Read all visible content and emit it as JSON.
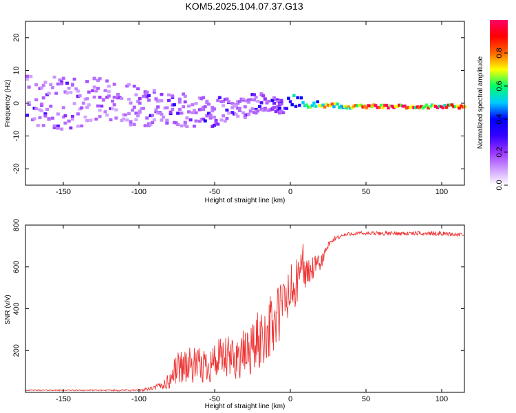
{
  "figure": {
    "title": "KOM5.2025.104.07.37.G13"
  },
  "chart_data": [
    {
      "type": "heatmap",
      "xlabel": "Height of straight line (km)",
      "ylabel": "Frequency (Hz)",
      "xlim": [
        -175,
        115
      ],
      "ylim": [
        -25,
        25
      ],
      "x_ticks": [
        -150,
        -100,
        -50,
        0,
        50,
        100
      ],
      "y_ticks": [
        -20,
        -10,
        0,
        10,
        20
      ],
      "colorbar": {
        "label": "Normalized spectral amplitude",
        "range": [
          0,
          1
        ],
        "ticks": [
          0.0,
          0.2,
          0.4,
          0.6,
          0.8
        ],
        "colormap": [
          "#ffffff",
          "#cc99ff",
          "#9933ff",
          "#3300ff",
          "#0000ff",
          "#00ccff",
          "#00ff66",
          "#ffff00",
          "#ff6600",
          "#ff0000",
          "#ff0066"
        ]
      },
      "ridge": [
        {
          "x": -175,
          "f": 0.5,
          "amp": 0.25,
          "spread": 8
        },
        {
          "x": -150,
          "f": 0.0,
          "amp": 0.25,
          "spread": 8
        },
        {
          "x": -125,
          "f": 0.5,
          "amp": 0.25,
          "spread": 7
        },
        {
          "x": -100,
          "f": -1.0,
          "amp": 0.25,
          "spread": 6
        },
        {
          "x": -80,
          "f": -1.5,
          "amp": 0.3,
          "spread": 5
        },
        {
          "x": -60,
          "f": -3.0,
          "amp": 0.3,
          "spread": 5
        },
        {
          "x": -40,
          "f": -2.0,
          "amp": 0.25,
          "spread": 4
        },
        {
          "x": -20,
          "f": 0.5,
          "amp": 0.3,
          "spread": 3
        },
        {
          "x": -5,
          "f": -1.5,
          "amp": 0.4,
          "spread": 2
        },
        {
          "x": 0,
          "f": 0.5,
          "amp": 0.45,
          "spread": 2
        },
        {
          "x": 20,
          "f": -0.5,
          "amp": 0.7,
          "spread": 0.8
        },
        {
          "x": 40,
          "f": -1.0,
          "amp": 0.7,
          "spread": 0.6
        },
        {
          "x": 60,
          "f": -1.0,
          "amp": 0.95,
          "spread": 0.5
        },
        {
          "x": 100,
          "f": -1.0,
          "amp": 0.9,
          "spread": 0.5
        },
        {
          "x": 115,
          "f": -1.0,
          "amp": 0.85,
          "spread": 0.5
        }
      ]
    },
    {
      "type": "line",
      "xlabel": "Height of straight line (km)",
      "ylabel": "SNR (v/v)",
      "xlim": [
        -175,
        115
      ],
      "ylim": [
        0,
        800
      ],
      "x_ticks": [
        -150,
        -100,
        -50,
        0,
        50,
        100
      ],
      "y_ticks": [
        200,
        400,
        600,
        800
      ],
      "color": "#ee3333",
      "series": [
        {
          "x": [
            -175,
            -150,
            -125,
            -100,
            -90,
            -80,
            -75,
            -70,
            -60,
            -50,
            -40,
            -30,
            -20,
            -15,
            -10,
            -5,
            0,
            5,
            8,
            10,
            15,
            20,
            25,
            30,
            40,
            50,
            60,
            70,
            80,
            90,
            100,
            110,
            115
          ],
          "values": [
            10,
            10,
            10,
            10,
            20,
            50,
            120,
            130,
            120,
            150,
            160,
            180,
            250,
            300,
            330,
            420,
            470,
            520,
            650,
            560,
            590,
            620,
            700,
            740,
            760,
            760,
            760,
            760,
            760,
            760,
            760,
            755,
            750
          ],
          "noise": [
            3,
            3,
            3,
            5,
            10,
            40,
            80,
            90,
            90,
            100,
            110,
            120,
            150,
            150,
            170,
            150,
            150,
            120,
            100,
            80,
            60,
            40,
            20,
            12,
            10,
            10,
            10,
            10,
            10,
            10,
            10,
            10,
            10
          ]
        }
      ]
    }
  ]
}
